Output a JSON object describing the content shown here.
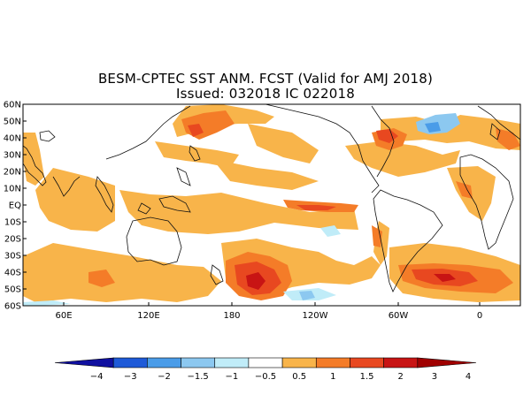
{
  "title": {
    "line1": "BESM-CPTEC SST ANM. FCST  (Valid for AMJ 2018)",
    "line2": "Issued:  032018 IC 022018"
  },
  "axes": {
    "lat_labels": [
      "60N",
      "50N",
      "40N",
      "30N",
      "20N",
      "10N",
      "EQ",
      "10S",
      "20S",
      "30S",
      "40S",
      "50S",
      "60S"
    ],
    "lon_labels": [
      "60E",
      "120E",
      "180",
      "120W",
      "60W",
      "0"
    ]
  },
  "colorbar": {
    "labels": [
      "−4",
      "−3",
      "−2",
      "−1.5",
      "−1",
      "−0.5",
      "0.5",
      "1",
      "1.5",
      "2",
      "3",
      "4"
    ],
    "colors": [
      "#1010a0",
      "#1e5ad8",
      "#4a9ce8",
      "#8cc8f0",
      "#c0ecf8",
      "#ffffff",
      "#f8b44a",
      "#f47c28",
      "#e84820",
      "#c81414",
      "#a00000"
    ]
  }
}
